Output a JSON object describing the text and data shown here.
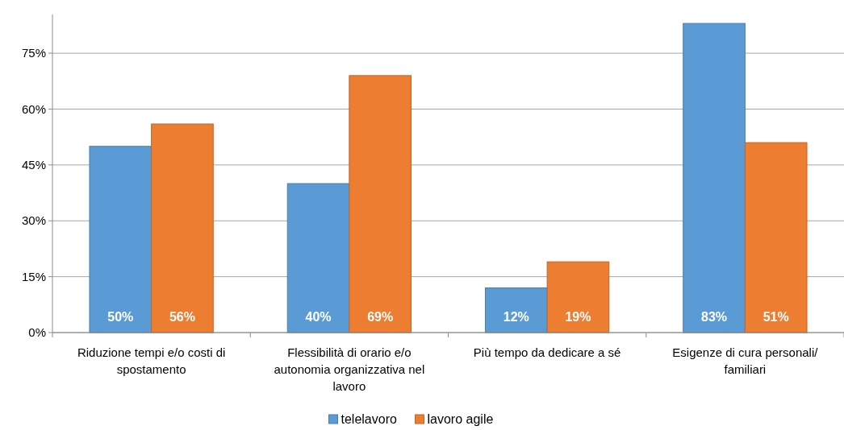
{
  "chart_data": {
    "type": "bar",
    "categories": [
      "Riduzione tempi e/o costi di spostamento",
      "Flessibilità di orario e/o autonomia organizzativa nel lavoro",
      "Più tempo da dedicare a sé",
      "Esigenze di cura personali/ familiari"
    ],
    "series": [
      {
        "name": "telelavoro",
        "color": "#5b9bd5",
        "values": [
          50,
          40,
          12,
          83
        ],
        "value_labels": [
          "50%",
          "40%",
          "12%",
          "83%"
        ]
      },
      {
        "name": "lavoro agile",
        "color": "#ed7d31",
        "values": [
          56,
          69,
          19,
          51
        ],
        "value_labels": [
          "56%",
          "69%",
          "19%",
          "51%"
        ]
      }
    ],
    "ylim": [
      0,
      85.4
    ],
    "yticks": [
      {
        "value": 0,
        "label": "0%"
      },
      {
        "value": 15,
        "label": "15%"
      },
      {
        "value": 30,
        "label": "30%"
      },
      {
        "value": 45,
        "label": "45%"
      },
      {
        "value": 60,
        "label": "60%"
      },
      {
        "value": 75,
        "label": "75%"
      }
    ],
    "grid": "y",
    "legend": "bottom"
  }
}
